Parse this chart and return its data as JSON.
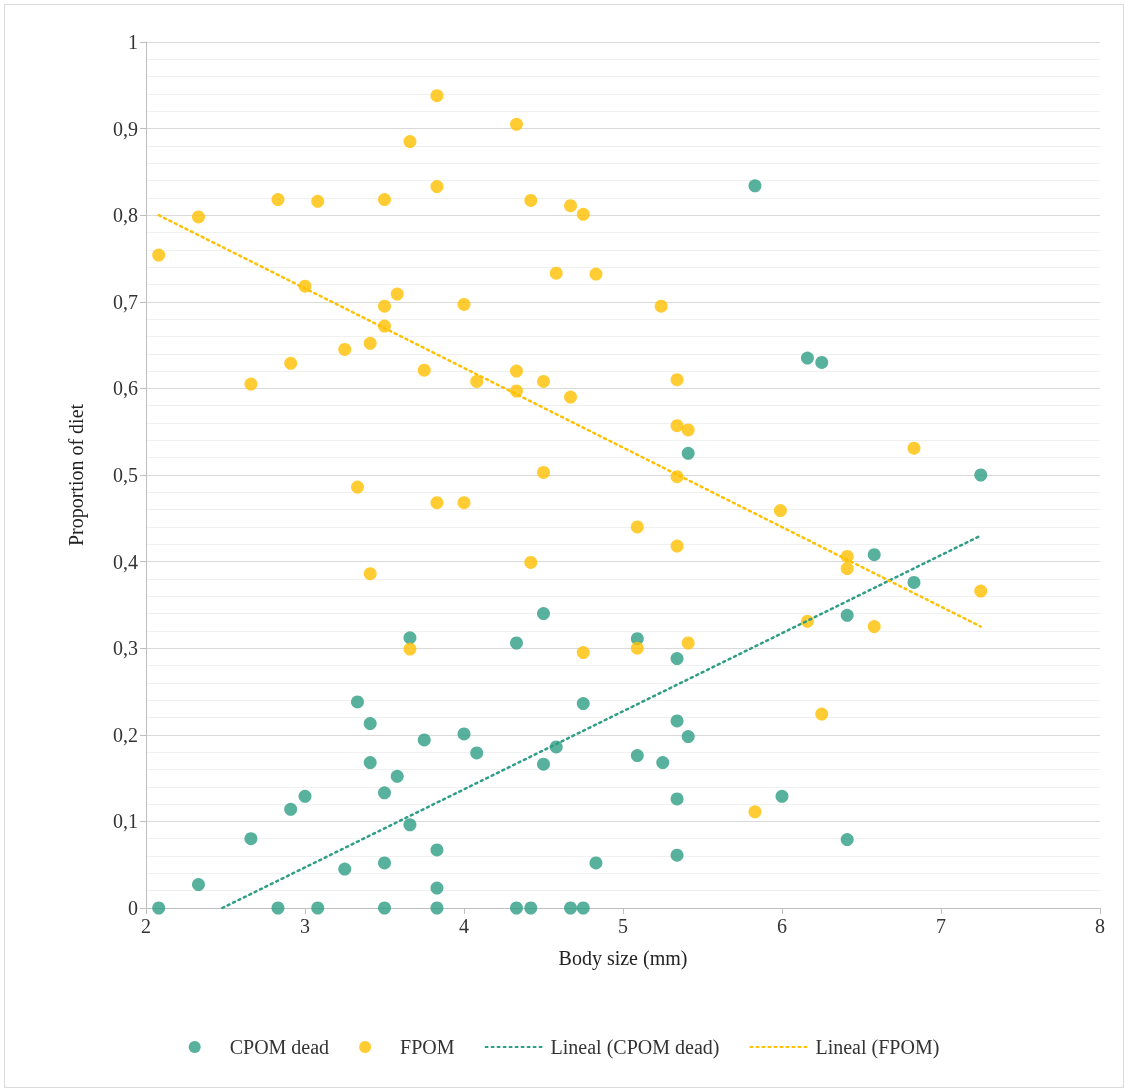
{
  "chart_data": {
    "type": "scatter",
    "xlabel": "Body size (mm)",
    "ylabel": "Proportion of diet",
    "xlim": [
      2,
      8
    ],
    "xticks": [
      2,
      3,
      4,
      5,
      6,
      7,
      8
    ],
    "ylim": [
      0,
      1
    ],
    "yticks": [
      0,
      {
        "value": 0.1,
        "label": "0,1"
      },
      {
        "value": 0.2,
        "label": "0,2"
      },
      {
        "value": 0.3,
        "label": "0,3"
      },
      {
        "value": 0.4,
        "label": "0,4"
      },
      {
        "value": 0.5,
        "label": "0,5"
      },
      {
        "value": 0.6,
        "label": "0,6"
      },
      {
        "value": 0.7,
        "label": "0,7"
      },
      {
        "value": 0.8,
        "label": "0,8"
      },
      {
        "value": 0.9,
        "label": "0,9"
      },
      1
    ],
    "grid": "y",
    "legend": "bottom",
    "marker": "circle",
    "series": [
      {
        "name": "CPOM dead",
        "color": "#2e9e84",
        "x": [
          2.08,
          2.33,
          2.66,
          2.83,
          2.91,
          3.0,
          3.08,
          3.25,
          3.33,
          3.41,
          3.41,
          3.5,
          3.5,
          3.5,
          3.58,
          3.66,
          3.66,
          3.75,
          3.83,
          3.83,
          3.83,
          4.0,
          4.08,
          4.33,
          4.33,
          4.42,
          4.5,
          4.5,
          4.58,
          4.67,
          4.75,
          4.75,
          4.83,
          5.09,
          5.09,
          5.25,
          5.34,
          5.34,
          5.34,
          5.34,
          5.41,
          5.41,
          5.83,
          6.0,
          6.16,
          6.25,
          6.41,
          6.41,
          6.58,
          6.83,
          7.25
        ],
        "values": [
          0,
          0.027,
          0.08,
          0,
          0.114,
          0.129,
          0,
          0.045,
          0.238,
          0.213,
          0.168,
          0.133,
          0.052,
          0,
          0.152,
          0.312,
          0.096,
          0.194,
          0.067,
          0.023,
          0,
          0.201,
          0.179,
          0.306,
          0,
          0,
          0.34,
          0.166,
          0.186,
          0,
          0.236,
          0,
          0.052,
          0.311,
          0.176,
          0.168,
          0.288,
          0.216,
          0.126,
          0.061,
          0.198,
          0.525,
          0.834,
          0.129,
          0.635,
          0.63,
          0.338,
          0.079,
          0.408,
          0.376,
          0.5
        ]
      },
      {
        "name": "FPOM",
        "color": "#ffc000",
        "x": [
          2.08,
          2.33,
          2.66,
          2.83,
          2.91,
          3.0,
          3.08,
          3.25,
          3.33,
          3.41,
          3.41,
          3.5,
          3.5,
          3.5,
          3.58,
          3.66,
          3.66,
          3.75,
          3.83,
          3.83,
          3.83,
          4.0,
          4.0,
          4.08,
          4.33,
          4.33,
          4.33,
          4.42,
          4.42,
          4.5,
          4.5,
          4.58,
          4.67,
          4.67,
          4.75,
          4.75,
          4.83,
          5.09,
          5.09,
          5.24,
          5.34,
          5.34,
          5.34,
          5.34,
          5.41,
          5.41,
          5.83,
          5.99,
          6.16,
          6.25,
          6.41,
          6.41,
          6.58,
          6.83,
          7.25
        ],
        "values": [
          0.754,
          0.798,
          0.605,
          0.818,
          0.629,
          0.718,
          0.816,
          0.645,
          0.486,
          0.652,
          0.386,
          0.818,
          0.695,
          0.672,
          0.709,
          0.885,
          0.299,
          0.621,
          0.938,
          0.833,
          0.468,
          0.697,
          0.468,
          0.608,
          0.905,
          0.62,
          0.597,
          0.817,
          0.399,
          0.608,
          0.503,
          0.733,
          0.811,
          0.59,
          0.801,
          0.295,
          0.732,
          0.44,
          0.3,
          0.695,
          0.61,
          0.557,
          0.498,
          0.418,
          0.552,
          0.306,
          0.111,
          0.459,
          0.331,
          0.224,
          0.406,
          0.392,
          0.325,
          0.531,
          0.366
        ]
      },
      {
        "name": "Lineal (CPOM dead)",
        "type": "line",
        "color": "#2e9e84",
        "marker": "none",
        "line_style": "dotted",
        "x": [
          2.48,
          7.25
        ],
        "values": [
          0,
          0.43
        ]
      },
      {
        "name": "Lineal (FPOM)",
        "type": "line",
        "color": "#ffc000",
        "marker": "none",
        "line_style": "dotted",
        "x": [
          2.08,
          7.25
        ],
        "values": [
          0.8,
          0.325
        ]
      }
    ]
  }
}
